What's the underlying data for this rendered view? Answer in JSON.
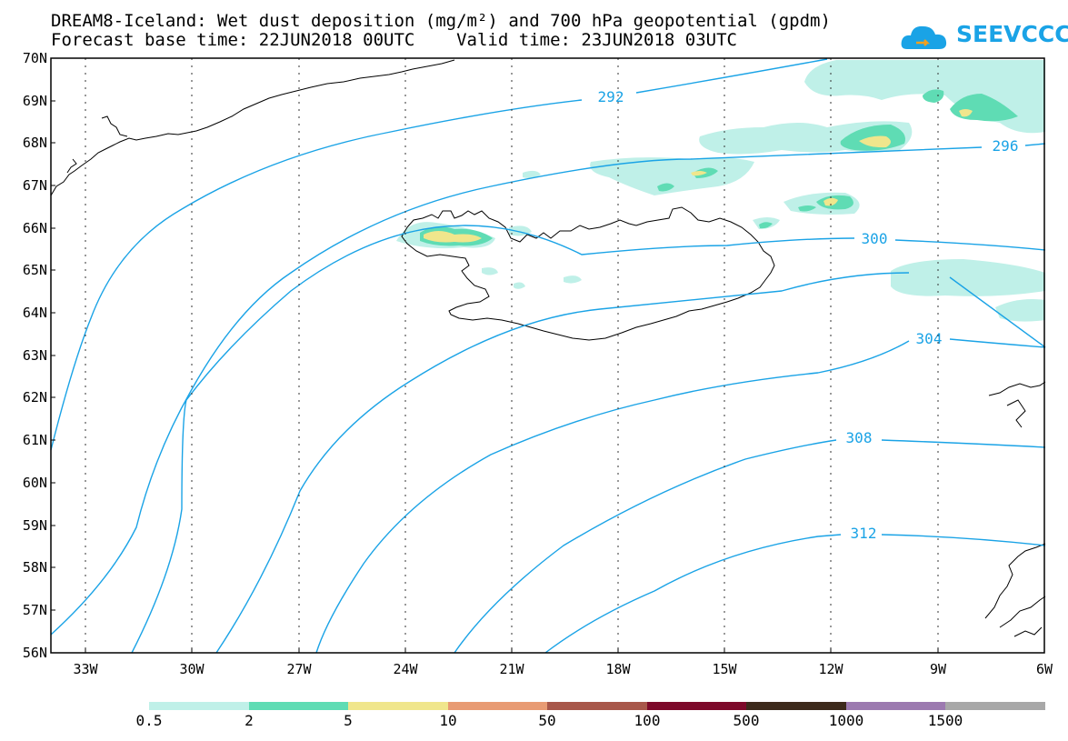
{
  "title_line1": "DREAM8-Iceland: Wet dust deposition (mg/m²) and 700 hPa geopotential (gpdm)",
  "title_line2": "Forecast base time: 22JUN2018 00UTC    Valid time: 23JUN2018 03UTC",
  "logo": {
    "text": "SEEVCCC",
    "icon": "cloud-logo-icon",
    "color": "#1aa3e6"
  },
  "lat_labels": [
    "70N",
    "69N",
    "68N",
    "67N",
    "66N",
    "65N",
    "64N",
    "63N",
    "62N",
    "61N",
    "60N",
    "59N",
    "58N",
    "57N",
    "56N"
  ],
  "lon_labels": [
    "33W",
    "30W",
    "27W",
    "24W",
    "21W",
    "18W",
    "15W",
    "12W",
    "9W",
    "6W"
  ],
  "contour_labels": [
    "292",
    "296",
    "300",
    "304",
    "308",
    "312"
  ],
  "contour_color": "#1aa3e6",
  "colorbar": {
    "labels": [
      "0.5",
      "2",
      "5",
      "10",
      "50",
      "100",
      "500",
      "1000",
      "1500"
    ],
    "colors": [
      "#bff0e8",
      "#5fdcb4",
      "#f0e68c",
      "#e89b73",
      "#a8574a",
      "#7d0a2a",
      "#3d2a1c",
      "#9c7ab0",
      "#a8a8a8"
    ]
  }
}
